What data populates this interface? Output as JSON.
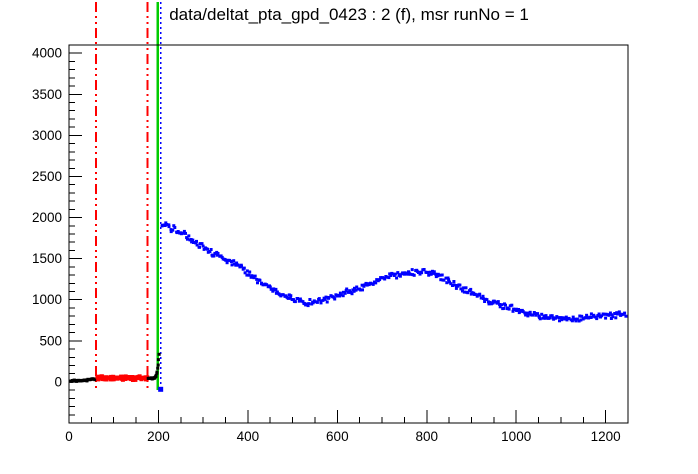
{
  "title": "data/deltat_pta_gpd_0423 : 2 (f), msr runNo = 1",
  "colors": {
    "frame": "#000000",
    "background_range_line": "#ff0000",
    "t0_line": "#00cc00",
    "data_range_line": "#0000ff",
    "histogram_pre": "#000000",
    "histogram_background": "#ff0000",
    "histogram_data": "#0000ff"
  },
  "chart_data": {
    "type": "scatter",
    "title": "data/deltat_pta_gpd_0423 : 2 (f), msr runNo = 1",
    "xlabel": "",
    "ylabel": "",
    "x_range": [
      0,
      1250
    ],
    "y_range": [
      -500,
      4100
    ],
    "grid": false,
    "legend": false,
    "x_ticks": {
      "minor_step": 50,
      "major": [
        {
          "value": 0,
          "label": "0"
        },
        {
          "value": 200,
          "label": "200"
        },
        {
          "value": 400,
          "label": "400"
        },
        {
          "value": 600,
          "label": "600"
        },
        {
          "value": 800,
          "label": "800"
        },
        {
          "value": 1000,
          "label": "1000"
        },
        {
          "value": 1200,
          "label": "1200"
        }
      ]
    },
    "y_ticks": {
      "minor_step": 100,
      "major": [
        {
          "value": 0,
          "label": "0"
        },
        {
          "value": 500,
          "label": "500"
        },
        {
          "value": 1000,
          "label": "1000"
        },
        {
          "value": 1500,
          "label": "1500"
        },
        {
          "value": 2000,
          "label": "2000"
        },
        {
          "value": 2500,
          "label": "2500"
        },
        {
          "value": 3000,
          "label": "3000"
        },
        {
          "value": 3500,
          "label": "3500"
        },
        {
          "value": 4000,
          "label": "4000"
        }
      ]
    },
    "series": [
      {
        "name": "pre-window-black",
        "color": "#000000",
        "marker_px": 3,
        "jitter": 12,
        "step": 1.5,
        "points": [
          [
            2,
            10
          ],
          [
            15,
            12
          ],
          [
            30,
            14
          ],
          [
            40,
            18
          ],
          [
            45,
            28
          ],
          [
            52,
            32
          ],
          [
            58,
            34
          ],
          [
            62,
            35
          ]
        ]
      },
      {
        "name": "background-window-red",
        "color": "#ff0000",
        "marker_px": 4,
        "jitter": 25,
        "step": 1.5,
        "points": [
          [
            63,
            42
          ],
          [
            72,
            50
          ],
          [
            85,
            46
          ],
          [
            100,
            48
          ],
          [
            115,
            44
          ],
          [
            130,
            47
          ],
          [
            145,
            43
          ],
          [
            158,
            47
          ],
          [
            168,
            44
          ],
          [
            176,
            42
          ]
        ]
      },
      {
        "name": "pre-t0-rise-black",
        "color": "#000000",
        "marker_px": 3,
        "jitter": 10,
        "step": 1,
        "points": [
          [
            177,
            40
          ],
          [
            184,
            44
          ],
          [
            188,
            42
          ],
          [
            192,
            52
          ],
          [
            195,
            75
          ],
          [
            197,
            120
          ],
          [
            199,
            210
          ],
          [
            201,
            330
          ]
        ]
      },
      {
        "name": "musr-histogram-blue",
        "color": "#0000ff",
        "marker_px": 3,
        "jitter": 45,
        "step": 2.5,
        "points": [
          [
            207,
            1865
          ],
          [
            211,
            1920
          ],
          [
            216,
            1942
          ],
          [
            221,
            1890
          ],
          [
            227,
            1856
          ],
          [
            234,
            1868
          ],
          [
            242,
            1832
          ],
          [
            250,
            1802
          ],
          [
            258,
            1794
          ],
          [
            265,
            1752
          ],
          [
            272,
            1714
          ],
          [
            280,
            1700
          ],
          [
            290,
            1672
          ],
          [
            300,
            1646
          ],
          [
            310,
            1612
          ],
          [
            320,
            1576
          ],
          [
            330,
            1550
          ],
          [
            340,
            1520
          ],
          [
            350,
            1497
          ],
          [
            360,
            1472
          ],
          [
            370,
            1444
          ],
          [
            380,
            1412
          ],
          [
            390,
            1370
          ],
          [
            400,
            1326
          ],
          [
            410,
            1286
          ],
          [
            420,
            1250
          ],
          [
            430,
            1220
          ],
          [
            440,
            1172
          ],
          [
            450,
            1152
          ],
          [
            460,
            1098
          ],
          [
            470,
            1072
          ],
          [
            480,
            1052
          ],
          [
            490,
            1038
          ],
          [
            500,
            1006
          ],
          [
            510,
            990
          ],
          [
            520,
            978
          ],
          [
            530,
            968
          ],
          [
            540,
            962
          ],
          [
            550,
            970
          ],
          [
            560,
            984
          ],
          [
            570,
            996
          ],
          [
            580,
            1012
          ],
          [
            590,
            1028
          ],
          [
            600,
            1046
          ],
          [
            610,
            1068
          ],
          [
            620,
            1090
          ],
          [
            630,
            1108
          ],
          [
            640,
            1126
          ],
          [
            650,
            1142
          ],
          [
            660,
            1162
          ],
          [
            670,
            1186
          ],
          [
            680,
            1212
          ],
          [
            690,
            1232
          ],
          [
            700,
            1252
          ],
          [
            710,
            1270
          ],
          [
            720,
            1288
          ],
          [
            730,
            1300
          ],
          [
            740,
            1312
          ],
          [
            750,
            1322
          ],
          [
            760,
            1330
          ],
          [
            770,
            1336
          ],
          [
            780,
            1338
          ],
          [
            790,
            1334
          ],
          [
            800,
            1328
          ],
          [
            810,
            1316
          ],
          [
            820,
            1298
          ],
          [
            830,
            1272
          ],
          [
            840,
            1244
          ],
          [
            850,
            1222
          ],
          [
            860,
            1200
          ],
          [
            870,
            1166
          ],
          [
            880,
            1132
          ],
          [
            890,
            1108
          ],
          [
            900,
            1086
          ],
          [
            910,
            1062
          ],
          [
            920,
            1040
          ],
          [
            930,
            1010
          ],
          [
            940,
            982
          ],
          [
            950,
            958
          ],
          [
            960,
            938
          ],
          [
            970,
            926
          ],
          [
            980,
            916
          ],
          [
            990,
            898
          ],
          [
            1000,
            880
          ],
          [
            1010,
            862
          ],
          [
            1020,
            842
          ],
          [
            1030,
            826
          ],
          [
            1040,
            812
          ],
          [
            1050,
            800
          ],
          [
            1060,
            792
          ],
          [
            1070,
            786
          ],
          [
            1080,
            776
          ],
          [
            1090,
            768
          ],
          [
            1100,
            763
          ],
          [
            1110,
            760
          ],
          [
            1120,
            762
          ],
          [
            1130,
            770
          ],
          [
            1140,
            778
          ],
          [
            1150,
            786
          ],
          [
            1160,
            790
          ],
          [
            1170,
            794
          ],
          [
            1180,
            798
          ],
          [
            1190,
            800
          ],
          [
            1200,
            806
          ],
          [
            1210,
            810
          ],
          [
            1220,
            812
          ],
          [
            1230,
            818
          ],
          [
            1245,
            832
          ]
        ]
      }
    ],
    "vlines": [
      {
        "name": "background-start",
        "x": 60,
        "color": "#ff0000",
        "width": 2,
        "dash": "10 4 2 4 2 4"
      },
      {
        "name": "background-end",
        "x": 176,
        "color": "#ff0000",
        "width": 2,
        "dash": "10 4 2 4 2 4"
      },
      {
        "name": "t0",
        "x": 198,
        "color": "#00cc00",
        "width": 2.5,
        "dash": ""
      },
      {
        "name": "data-range-start",
        "x": 205,
        "color": "#0000ff",
        "width": 1.5,
        "dash": "2 3"
      }
    ],
    "extra_points": [
      {
        "name": "data-range-foot-marker",
        "x": 205,
        "y": -90,
        "color": "#0000ff",
        "marker_px": 5
      }
    ]
  }
}
